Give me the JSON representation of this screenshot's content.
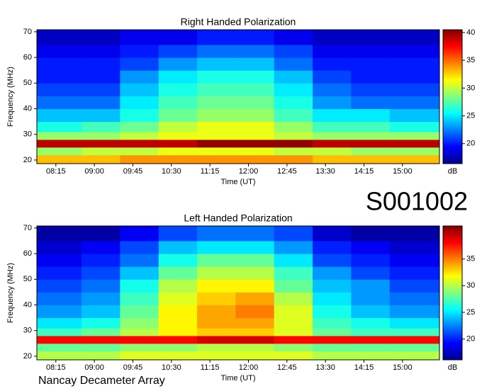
{
  "chart_data": [
    {
      "type": "heatmap",
      "title": "Right Handed Polarization",
      "x_label": "Time (UT)",
      "y_label": "Frequency (MHz)",
      "xlim": [
        7.88,
        15.72
      ],
      "ylim": [
        18.6,
        70.8
      ],
      "xticks": [
        {
          "value": 8.25,
          "label": "08:15"
        },
        {
          "value": 9,
          "label": "09:00"
        },
        {
          "value": 9.75,
          "label": "09:45"
        },
        {
          "value": 10.5,
          "label": "10:30"
        },
        {
          "value": 11.25,
          "label": "11:15"
        },
        {
          "value": 12,
          "label": "12:00"
        },
        {
          "value": 12.75,
          "label": "12:45"
        },
        {
          "value": 13.5,
          "label": "13:30"
        },
        {
          "value": 14.25,
          "label": "14:15"
        },
        {
          "value": 15,
          "label": "15:00"
        }
      ],
      "yticks": [
        20,
        30,
        40,
        50,
        60,
        70
      ],
      "x_edges": [
        7.88,
        8.75,
        9.5,
        10.25,
        11,
        11.75,
        12.5,
        13.25,
        14,
        14.75,
        15.72
      ],
      "y_edges": [
        18.6,
        22,
        25,
        28,
        31,
        35,
        40,
        45,
        50,
        55,
        60,
        65,
        70.8
      ],
      "values": [
        [
          33,
          33,
          34,
          34,
          34,
          34,
          34,
          33,
          33,
          33
        ],
        [
          29,
          30,
          30,
          31,
          31,
          31,
          30,
          30,
          29,
          29
        ],
        [
          39,
          39,
          39,
          39,
          40,
          40,
          40,
          39,
          39,
          39
        ],
        [
          29,
          29,
          30,
          31,
          31,
          31,
          30,
          29,
          29,
          29
        ],
        [
          26,
          27,
          28,
          30,
          31,
          31,
          29,
          27,
          27,
          26
        ],
        [
          24,
          24,
          26,
          28,
          29,
          29,
          27,
          25,
          25,
          24
        ],
        [
          22,
          22,
          25,
          27,
          28,
          28,
          26,
          23,
          22,
          22
        ],
        [
          21,
          21,
          24,
          26,
          27,
          27,
          25,
          22,
          21,
          21
        ],
        [
          20,
          20,
          23,
          25,
          26,
          26,
          24,
          21,
          20,
          20
        ],
        [
          20,
          20,
          21,
          23,
          24,
          24,
          22,
          20,
          20,
          20
        ],
        [
          19,
          19,
          20,
          21,
          22,
          22,
          21,
          19,
          19,
          19
        ],
        [
          18,
          18,
          19,
          19,
          20,
          20,
          19,
          18,
          18,
          18
        ]
      ],
      "colormap": "jet",
      "clim": [
        16.4,
        40.5
      ],
      "cticks": [
        20,
        25,
        30,
        35,
        40
      ],
      "colorbar_label": "dB"
    },
    {
      "type": "heatmap",
      "title": "Left Handed Polarization",
      "x_label": "Time (UT)",
      "y_label": "Frequency (MHz)",
      "xlim": [
        7.88,
        15.72
      ],
      "ylim": [
        18.6,
        70.8
      ],
      "xticks": [
        {
          "value": 8.25,
          "label": "08:15"
        },
        {
          "value": 9,
          "label": "09:00"
        },
        {
          "value": 9.75,
          "label": "09:45"
        },
        {
          "value": 10.5,
          "label": "10:30"
        },
        {
          "value": 11.25,
          "label": "11:15"
        },
        {
          "value": 12,
          "label": "12:00"
        },
        {
          "value": 12.75,
          "label": "12:45"
        },
        {
          "value": 13.5,
          "label": "13:30"
        },
        {
          "value": 14.25,
          "label": "14:15"
        },
        {
          "value": 15,
          "label": "15:00"
        }
      ],
      "yticks": [
        20,
        30,
        40,
        50,
        60,
        70
      ],
      "x_edges": [
        7.88,
        8.75,
        9.5,
        10.25,
        11,
        11.75,
        12.5,
        13.25,
        14,
        14.75,
        15.72
      ],
      "y_edges": [
        18.6,
        22,
        25,
        28,
        31,
        35,
        40,
        45,
        50,
        55,
        60,
        65,
        70.8
      ],
      "values": [
        [
          30,
          30,
          31,
          31,
          31,
          31,
          31,
          30,
          30,
          30
        ],
        [
          28,
          28,
          29,
          29,
          30,
          30,
          29,
          28,
          28,
          28
        ],
        [
          38,
          38,
          38,
          38,
          39,
          39,
          38,
          38,
          38,
          38
        ],
        [
          27,
          28,
          30,
          32,
          33,
          33,
          31,
          28,
          27,
          27
        ],
        [
          25,
          26,
          29,
          32,
          34,
          34,
          31,
          27,
          26,
          25
        ],
        [
          23,
          24,
          28,
          32,
          34,
          35,
          31,
          26,
          24,
          23
        ],
        [
          22,
          23,
          27,
          31,
          33,
          34,
          30,
          25,
          23,
          22
        ],
        [
          21,
          22,
          26,
          30,
          32,
          32,
          28,
          24,
          23,
          21
        ],
        [
          20,
          21,
          24,
          28,
          30,
          30,
          27,
          23,
          21,
          20
        ],
        [
          19,
          20,
          22,
          26,
          28,
          28,
          25,
          21,
          20,
          19
        ],
        [
          18,
          19,
          21,
          24,
          25,
          25,
          23,
          20,
          19,
          18
        ],
        [
          17,
          17,
          19,
          21,
          22,
          22,
          21,
          18,
          17,
          17
        ]
      ],
      "colormap": "jet",
      "clim": [
        16.1,
        41.2
      ],
      "cticks": [
        20,
        25,
        30,
        35
      ],
      "colorbar_label": "dB"
    }
  ],
  "station_id": "S001002",
  "footer": "Nancay Decameter Array"
}
